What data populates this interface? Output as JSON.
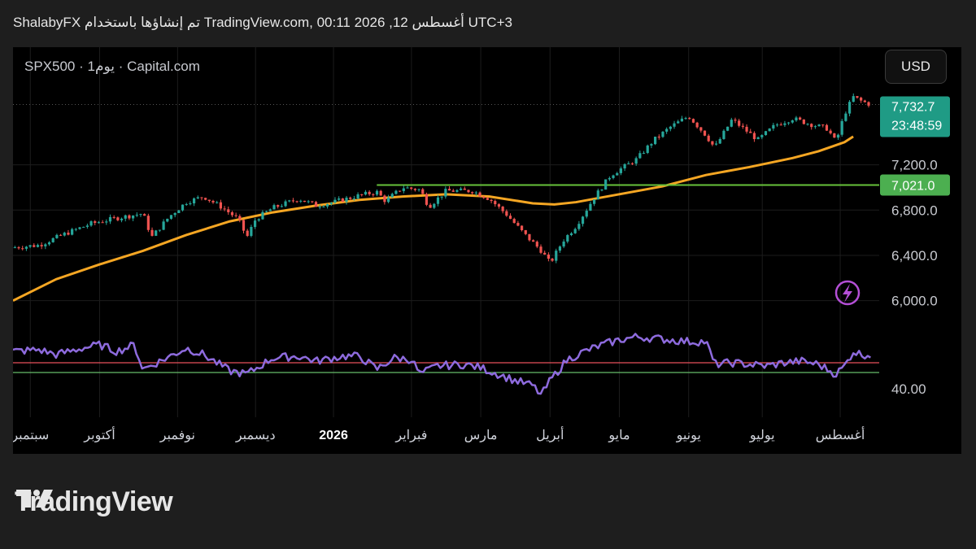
{
  "header": {
    "text": "ShalabyFX تم إنشاؤها باستخدام TradingView.com, 00:11 2026 ,12 أغسطس UTC+3"
  },
  "chart_header": {
    "symbol_line": "SPX500 · يوم1 · Capital.com",
    "currency_button": "USD"
  },
  "footer": {
    "brand": "TradingView"
  },
  "colors": {
    "up": "#26a69a",
    "down": "#ef5350",
    "ma": "#f5a623",
    "rsi": "#8e6bde",
    "level": "#67c23a",
    "price_tag": "#1f9b85",
    "level_tag": "#4caf50",
    "rsi_upper": "#e8505b",
    "rsi_lower": "#66bb6a",
    "lightning": "#b44fd6"
  },
  "icons": {
    "lightning": "lightning-icon",
    "logo": "tradingview-logo-icon"
  },
  "chart_data": {
    "type": "candlestick",
    "symbol": "SPX500",
    "interval": "1D",
    "y_ticks": [
      "7,200.0",
      "6,800.0",
      "6,400.0",
      "6,000.0"
    ],
    "y_tick_values": [
      7200,
      6800,
      6400,
      6000
    ],
    "ylim": [
      5940,
      7880
    ],
    "current_price": {
      "label": "7,732.7",
      "value": 7732.7,
      "countdown": "23:48:59"
    },
    "horizontal_level": {
      "label": "7,021.0",
      "value": 7021
    },
    "x_labels": [
      "سبتمبر",
      "أكتوبر",
      "نوفمبر",
      "ديسمبر",
      "2026",
      "فبراير",
      "مارس",
      "أبريل",
      "مايو",
      "يونيو",
      "يوليو",
      "أغسطس"
    ],
    "x_label_positions": [
      0.02,
      0.1,
      0.19,
      0.28,
      0.37,
      0.46,
      0.54,
      0.62,
      0.7,
      0.78,
      0.865,
      0.955
    ],
    "price_path": [
      [
        0,
        6470
      ],
      [
        0.03,
        6490
      ],
      [
        0.06,
        6590
      ],
      [
        0.09,
        6680
      ],
      [
        0.12,
        6730
      ],
      [
        0.15,
        6770
      ],
      [
        0.16,
        6560
      ],
      [
        0.18,
        6740
      ],
      [
        0.2,
        6870
      ],
      [
        0.22,
        6920
      ],
      [
        0.24,
        6830
      ],
      [
        0.26,
        6720
      ],
      [
        0.27,
        6560
      ],
      [
        0.28,
        6720
      ],
      [
        0.3,
        6820
      ],
      [
        0.33,
        6900
      ],
      [
        0.35,
        6840
      ],
      [
        0.37,
        6870
      ],
      [
        0.4,
        6930
      ],
      [
        0.42,
        6960
      ],
      [
        0.43,
        6880
      ],
      [
        0.45,
        7000
      ],
      [
        0.47,
        6980
      ],
      [
        0.48,
        6830
      ],
      [
        0.5,
        6970
      ],
      [
        0.53,
        6970
      ],
      [
        0.55,
        6900
      ],
      [
        0.57,
        6760
      ],
      [
        0.59,
        6590
      ],
      [
        0.61,
        6440
      ],
      [
        0.62,
        6330
      ],
      [
        0.635,
        6530
      ],
      [
        0.65,
        6660
      ],
      [
        0.67,
        6900
      ],
      [
        0.69,
        7110
      ],
      [
        0.72,
        7250
      ],
      [
        0.74,
        7420
      ],
      [
        0.76,
        7540
      ],
      [
        0.78,
        7630
      ],
      [
        0.8,
        7460
      ],
      [
        0.81,
        7350
      ],
      [
        0.83,
        7600
      ],
      [
        0.86,
        7420
      ],
      [
        0.88,
        7550
      ],
      [
        0.9,
        7610
      ],
      [
        0.92,
        7560
      ],
      [
        0.94,
        7520
      ],
      [
        0.95,
        7400
      ],
      [
        0.96,
        7650
      ],
      [
        0.97,
        7800
      ],
      [
        0.98,
        7760
      ],
      [
        0.99,
        7733
      ]
    ],
    "ma_path": [
      [
        0,
        6000
      ],
      [
        0.05,
        6190
      ],
      [
        0.1,
        6320
      ],
      [
        0.15,
        6440
      ],
      [
        0.2,
        6580
      ],
      [
        0.25,
        6700
      ],
      [
        0.3,
        6780
      ],
      [
        0.35,
        6840
      ],
      [
        0.4,
        6890
      ],
      [
        0.45,
        6920
      ],
      [
        0.5,
        6940
      ],
      [
        0.55,
        6920
      ],
      [
        0.6,
        6860
      ],
      [
        0.625,
        6850
      ],
      [
        0.65,
        6870
      ],
      [
        0.7,
        6940
      ],
      [
        0.75,
        7010
      ],
      [
        0.8,
        7110
      ],
      [
        0.85,
        7180
      ],
      [
        0.9,
        7260
      ],
      [
        0.93,
        7320
      ],
      [
        0.96,
        7400
      ],
      [
        0.97,
        7450
      ]
    ],
    "rsi": {
      "y_ticks": [
        "40.00"
      ],
      "y_tick_values": [
        40
      ],
      "ylim": [
        30,
        85
      ],
      "upper_level": 56,
      "lower_level": 50,
      "path": [
        [
          0,
          63
        ],
        [
          0.03,
          64
        ],
        [
          0.05,
          61
        ],
        [
          0.08,
          65
        ],
        [
          0.1,
          67
        ],
        [
          0.12,
          63
        ],
        [
          0.14,
          67
        ],
        [
          0.15,
          52
        ],
        [
          0.17,
          57
        ],
        [
          0.2,
          65
        ],
        [
          0.22,
          61
        ],
        [
          0.25,
          51
        ],
        [
          0.27,
          49
        ],
        [
          0.3,
          59
        ],
        [
          0.33,
          60
        ],
        [
          0.35,
          57
        ],
        [
          0.38,
          60
        ],
        [
          0.4,
          60
        ],
        [
          0.42,
          52
        ],
        [
          0.44,
          59
        ],
        [
          0.46,
          58
        ],
        [
          0.47,
          49
        ],
        [
          0.49,
          54
        ],
        [
          0.52,
          55
        ],
        [
          0.54,
          53
        ],
        [
          0.56,
          49
        ],
        [
          0.58,
          45
        ],
        [
          0.6,
          42
        ],
        [
          0.61,
          36
        ],
        [
          0.62,
          45
        ],
        [
          0.64,
          58
        ],
        [
          0.66,
          63
        ],
        [
          0.68,
          67
        ],
        [
          0.7,
          70
        ],
        [
          0.72,
          72
        ],
        [
          0.74,
          71
        ],
        [
          0.76,
          70
        ],
        [
          0.78,
          69
        ],
        [
          0.8,
          69
        ],
        [
          0.81,
          55
        ],
        [
          0.83,
          56
        ],
        [
          0.85,
          55
        ],
        [
          0.87,
          54
        ],
        [
          0.89,
          56
        ],
        [
          0.91,
          57
        ],
        [
          0.93,
          55
        ],
        [
          0.95,
          49
        ],
        [
          0.96,
          54
        ],
        [
          0.97,
          63
        ],
        [
          0.98,
          61
        ],
        [
          0.99,
          61
        ]
      ]
    }
  }
}
